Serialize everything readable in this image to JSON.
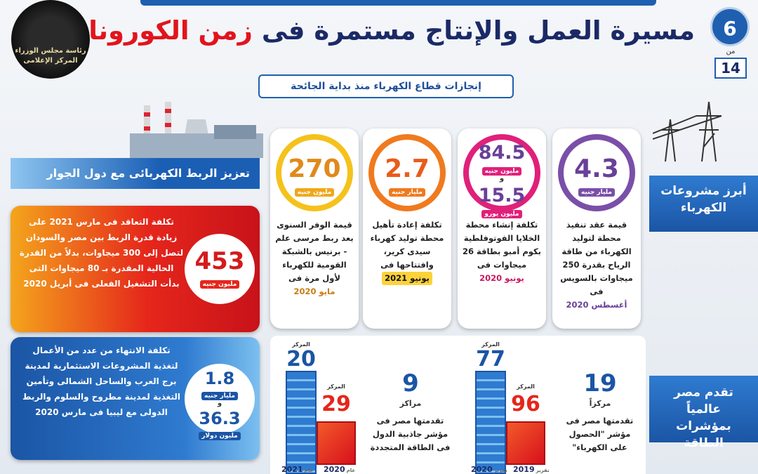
{
  "header": {
    "title_main": "مسيرة العمل والإنتاج مستمرة فى",
    "title_highlight": "زمن الكورونا",
    "subtitle": "إنجازات قطاع الكهرباء منذ بداية الجائحة",
    "page": {
      "number": "6",
      "of": "من",
      "total": "14"
    },
    "logo": {
      "line1": "رئاسة مجلس الوزراء",
      "line2": "المركز الإعلامى"
    }
  },
  "sections": {
    "projects": "أبرز مشروعات الكهرباء",
    "rankings": "تقدم مصر عالمياً بمؤشرات الطاقة",
    "interconnection": "تعزيز الربط الكهربائى مع دول الجوار"
  },
  "cards": [
    {
      "amounts": [
        {
          "value": "4.3",
          "unit": "مليار جنيه"
        }
      ],
      "text": "قيمة عقد تنفيذ محطة لتوليد الكهرباء من طاقة الرياح بقدرة 250 ميجاوات بالسويس فى",
      "date": "أغسطس 2020"
    },
    {
      "amounts": [
        {
          "value": "84.5",
          "unit": "مليون جنيه"
        },
        {
          "value": "15.5",
          "unit": "مليون يورو"
        }
      ],
      "connector": "و",
      "text": "تكلفة إنشاء محطة الخلايا الفوتوفلطية بكوم أمبو بطاقة 26 ميجاوات فى",
      "date": "يونيو 2020"
    },
    {
      "amounts": [
        {
          "value": "2.7",
          "unit": "مليار جنيه"
        }
      ],
      "text": "تكلفة إعادة تأهيل محطة توليد كهرباء سيدى كرير، وافتتاحها فى",
      "date": "يونيو 2021"
    },
    {
      "amounts": [
        {
          "value": "270",
          "unit": "مليون جنيه"
        }
      ],
      "text": "قيمة الوفر السنوى بعد ربط مرسى علم - برنيس بالشبكة القومية للكهرباء لأول مرة فى",
      "date": "مايو 2020"
    }
  ],
  "interconnection": [
    {
      "amounts": [
        {
          "value": "453",
          "unit": "مليون جنيه"
        }
      ],
      "text": "تكلفة التعاقد فى مارس 2021 على زيادة قدرة الربط بين مصر والسودان لتصل إلى 300 ميجاوات، بدلاً من القدرة الحالية المقدرة بـ 80 ميجاوات التى بدأت التشغيل الفعلى فى أبريل 2020"
    },
    {
      "amounts": [
        {
          "value": "1.8",
          "unit": "مليار جنيه"
        },
        {
          "value": "36.3",
          "unit": "مليون دولار"
        }
      ],
      "connector": "و",
      "text": "تكلفة الانتهاء من عدد من الأعمال لتغذية المشروعات الاستثمارية لمدينة برج العرب والساحل الشمالى وتأمين التغذية لمدينة مطروح والسلوم والربط الدولى مع ليبيا فى مارس 2020"
    }
  ],
  "rankings": [
    {
      "improvement": "19",
      "unit": "مركزاً",
      "text": "تقدمتها مصر فى مؤشر \"الحصول على الكهرباء\"",
      "ranks": [
        {
          "label": "المركز",
          "value": "77",
          "prefix": "تقرير",
          "year": "2020"
        },
        {
          "label": "المركز",
          "value": "96",
          "prefix": "تقرير",
          "year": "2019"
        }
      ]
    },
    {
      "improvement": "9",
      "unit": "مراكز",
      "text": "تقدمتها مصر فى مؤشر جاذبية الدول فى الطاقة المتجددة",
      "ranks": [
        {
          "label": "المركز",
          "value": "20",
          "prefix": "عام",
          "year": "2021"
        },
        {
          "label": "المركز",
          "value": "29",
          "prefix": "عام",
          "year": "2020"
        }
      ]
    }
  ]
}
